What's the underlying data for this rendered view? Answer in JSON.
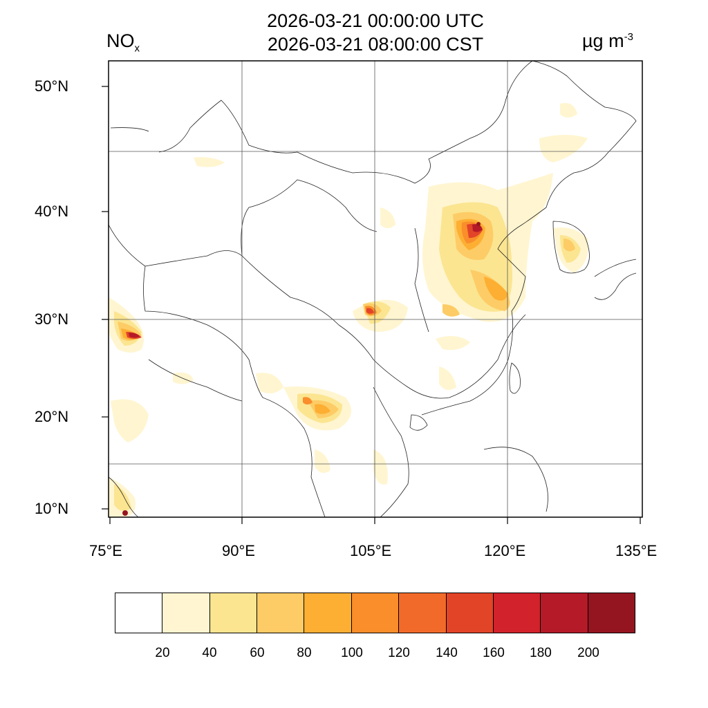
{
  "title": {
    "line1": "2026-03-21 00:00:00 UTC",
    "line2": "2026-03-21 08:00:00 CST"
  },
  "species": {
    "main": "NO",
    "sub": "x"
  },
  "units": {
    "main": "µg m",
    "sup": "-3"
  },
  "lat_labels": [
    "50°N",
    "40°N",
    "30°N",
    "20°N",
    "10°N"
  ],
  "lon_labels": [
    "75°E",
    "90°E",
    "105°E",
    "120°E",
    "135°E"
  ],
  "legend": {
    "ticks": [
      "20",
      "40",
      "60",
      "80",
      "100",
      "120",
      "140",
      "160",
      "180",
      "200"
    ],
    "colors": [
      "#ffffff",
      "#fff5d0",
      "#fbe591",
      "#fdcc66",
      "#fdaf33",
      "#f98e2b",
      "#f26a2a",
      "#e24428",
      "#d2222b",
      "#b51a28",
      "#941520"
    ]
  }
}
